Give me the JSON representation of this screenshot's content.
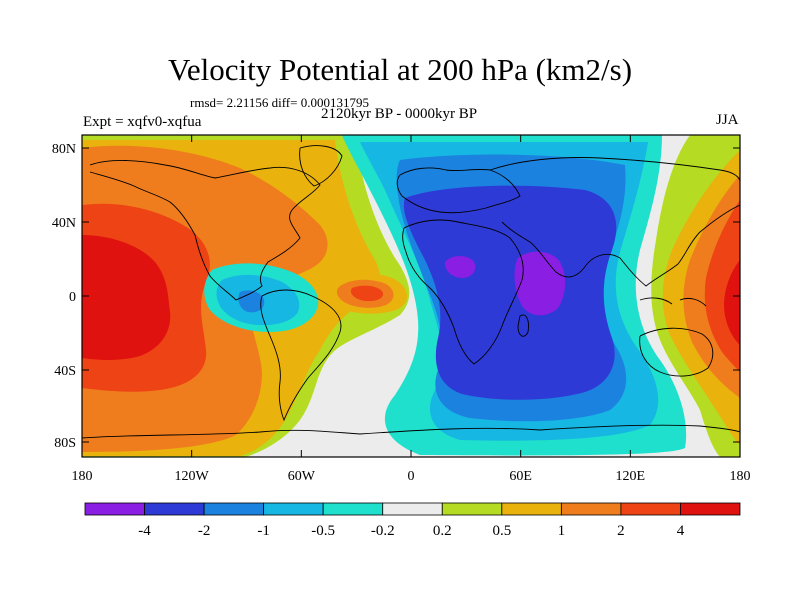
{
  "title": "Velocity Potential at 200 hPa (km2/s)",
  "stats": "rmsd= 2.21156 diff= 0.000131795",
  "period": "2120kyr BP - 0000kyr BP",
  "expt": "Expt = xqfv0-xqfua",
  "season": "JJA",
  "lat_ticks": [
    "80N",
    "40N",
    "0",
    "40S",
    "80S"
  ],
  "lon_ticks": [
    "180",
    "120W",
    "60W",
    "0",
    "60E",
    "120E",
    "180"
  ],
  "colorbar": {
    "labels": [
      "-4",
      "-2",
      "-1",
      "-0.5",
      "-0.2",
      "0.2",
      "0.5",
      "1",
      "2",
      "4"
    ],
    "colors": [
      "#8a1ee3",
      "#2e3ad6",
      "#1c82e0",
      "#16b7e2",
      "#1ee0cc",
      "#ececec",
      "#b5dc22",
      "#e9b20d",
      "#ef7d1d",
      "#ee4314",
      "#e0120f"
    ]
  }
}
